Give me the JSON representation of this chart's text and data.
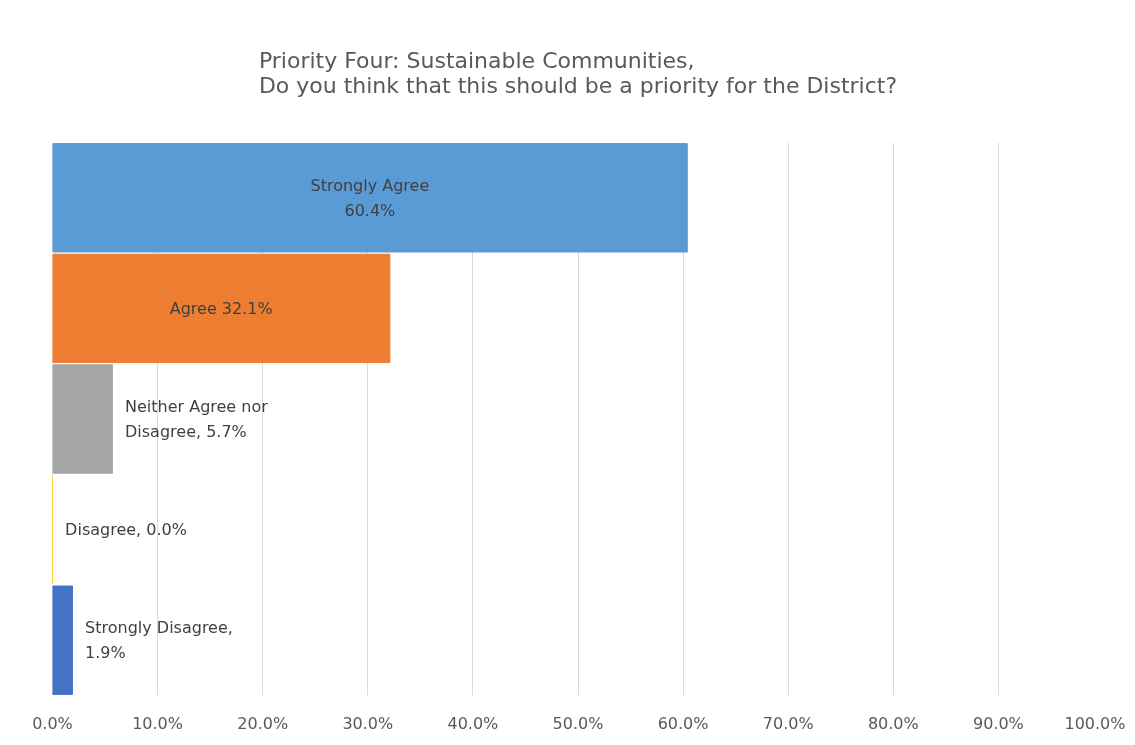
{
  "chart_data": {
    "type": "bar",
    "orientation": "horizontal",
    "title": "Priority Four: Sustainable Communities,\nDo you think that this should be a priority for the District?",
    "categories": [
      null,
      null,
      null,
      null,
      null
    ],
    "values": [
      60.4,
      32.1,
      5.7,
      0.0,
      1.9
    ],
    "colors": [
      "#5b9bd5",
      "#ed7d31",
      "#a5a5a5",
      "#ffc000",
      "#4472c4"
    ],
    "value_labels": [
      "Strongly Agree\n60.4%",
      "Agree 32.1%",
      "Neither Agree nor\nDisagree, 5.7%",
      "Disagree, 0.0%",
      "Strongly Disagree,\n1.9%"
    ],
    "xlim": [
      0,
      100
    ],
    "xticks": [
      {
        "value": 0,
        "label": "0.0%"
      },
      {
        "value": 10,
        "label": "10.0%"
      },
      {
        "value": 20,
        "label": "20.0%"
      },
      {
        "value": 30,
        "label": "30.0%"
      },
      {
        "value": 40,
        "label": "40.0%"
      },
      {
        "value": 50,
        "label": "50.0%"
      },
      {
        "value": 60,
        "label": "60.0%"
      },
      {
        "value": 70,
        "label": "70.0%"
      },
      {
        "value": 80,
        "label": "80.0%"
      },
      {
        "value": 90,
        "label": "90.0%"
      },
      {
        "value": 100,
        "label": "100.0%"
      }
    ],
    "tick_labels": "x",
    "grid": "x"
  }
}
